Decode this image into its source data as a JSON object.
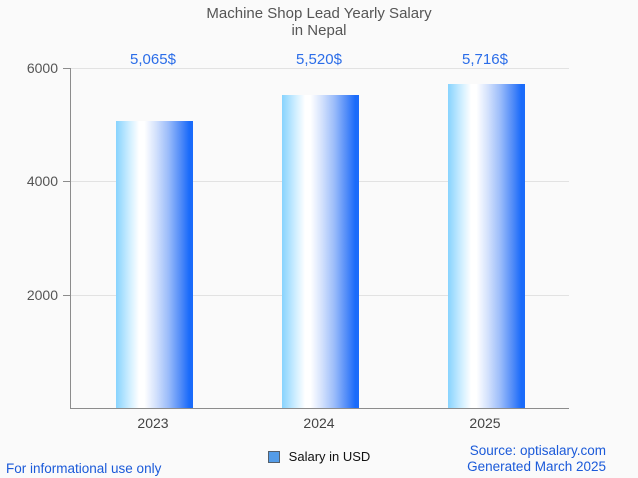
{
  "title": {
    "line1": "Machine Shop Lead Yearly Salary",
    "line2": "in Nepal"
  },
  "chart_data": {
    "type": "bar",
    "title": "Machine Shop Lead Yearly Salary in Nepal",
    "categories": [
      "2023",
      "2024",
      "2025"
    ],
    "series": [
      {
        "name": "Salary in USD",
        "values": [
          5065,
          5520,
          5716
        ]
      }
    ],
    "value_labels": [
      "5,065$",
      "5,520$",
      "5,716$"
    ],
    "xlabel": "",
    "ylabel": "",
    "ylim": [
      0,
      6000
    ],
    "yticks": [
      2000,
      4000,
      6000
    ],
    "ytick_labels": [
      "2000",
      "4000",
      "6000"
    ],
    "grid": true,
    "legend_position": "bottom",
    "bar_gradient": [
      "#87d3fe",
      "#ffffff",
      "#1a6bfa"
    ]
  },
  "legend": {
    "label": "Salary in USD",
    "swatch_color": "#549ce8"
  },
  "footer": {
    "left": "For informational use only",
    "source": "Source: optisalary.com",
    "generated": "Generated March 2025"
  },
  "colors": {
    "background": "#fafafa",
    "title_text": "#555555",
    "axis": "#8c8c8c",
    "grid": "#e2e2e2",
    "value_label": "#2b6de8",
    "footer_link": "#1b5ad9"
  }
}
